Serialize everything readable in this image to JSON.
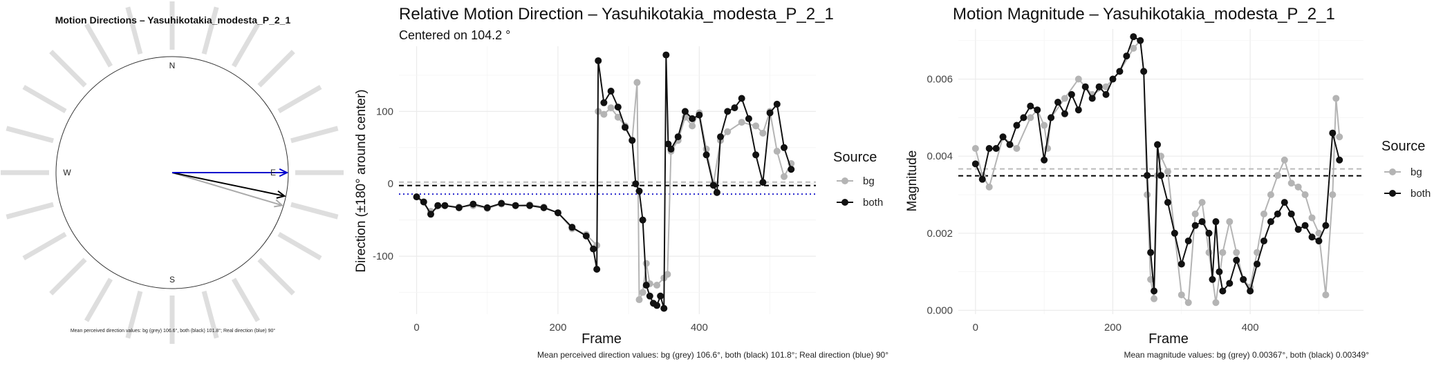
{
  "chart_data": [
    {
      "type": "polar",
      "title": "Motion Directions – Yasuhikotakia_modesta_P_2_1",
      "compass": [
        "N",
        "E",
        "S",
        "W"
      ],
      "rays_deg_ccw_from_east": [
        0,
        15,
        30,
        45,
        60,
        75,
        90,
        105,
        120,
        135,
        150,
        165,
        180,
        195,
        210,
        225,
        240,
        255,
        270,
        285,
        300,
        315,
        330,
        345
      ],
      "arrows": [
        {
          "name": "bg",
          "angle_deg_cw_from_east": 16.6,
          "color": "#aaaaaa"
        },
        {
          "name": "both",
          "angle_deg_cw_from_east": 11.8,
          "color": "#000000"
        },
        {
          "name": "Real",
          "angle_deg_cw_from_east": 0,
          "color": "#0000cc"
        }
      ],
      "caption": "Mean perceived direction values: bg (grey) 106.6°, both (black) 101.8°; Real direction (blue) 90°"
    },
    {
      "type": "line",
      "title": "Relative Motion Direction – Yasuhikotakia_modesta_P_2_1",
      "subtitle": "Centered on  104.2 °",
      "xlabel": "Frame",
      "ylabel": "Direction (±180° around center)",
      "xlim": [
        -25,
        565
      ],
      "ylim": [
        -180,
        190
      ],
      "xticks": [
        0,
        200,
        400
      ],
      "yticks": [
        -100,
        0,
        100
      ],
      "legend": {
        "title": "Source",
        "entries": [
          "bg",
          "both"
        ],
        "placement": "right"
      },
      "hlines": [
        {
          "y": 2.4,
          "color": "#bbbbbb",
          "style": "dashed"
        },
        {
          "y": -2.4,
          "color": "#000000",
          "style": "dashed"
        },
        {
          "y": -14.2,
          "color": "#2222cc",
          "style": "dotted"
        }
      ],
      "series": [
        {
          "name": "bg",
          "color": "#b4b4b4",
          "x": [
            0,
            20,
            40,
            60,
            80,
            100,
            120,
            140,
            160,
            180,
            200,
            220,
            240,
            255,
            257,
            265,
            275,
            285,
            295,
            305,
            312,
            315,
            320,
            325,
            330,
            340,
            350,
            355,
            360,
            370,
            380,
            390,
            400,
            410,
            420,
            430,
            440,
            460,
            480,
            490,
            500,
            510,
            520,
            530
          ],
          "y": [
            -18,
            -38,
            -30,
            -32,
            -30,
            -34,
            -28,
            -30,
            -29,
            -32,
            -40,
            -62,
            -70,
            -85,
            100,
            96,
            105,
            92,
            80,
            60,
            140,
            -160,
            -150,
            -110,
            -138,
            -140,
            -130,
            -125,
            45,
            60,
            92,
            80,
            98,
            48,
            0,
            60,
            72,
            85,
            80,
            70,
            100,
            45,
            10,
            28
          ]
        },
        {
          "name": "both",
          "color": "#111111",
          "x": [
            0,
            10,
            20,
            30,
            40,
            60,
            80,
            100,
            120,
            140,
            160,
            180,
            200,
            220,
            240,
            250,
            255,
            257,
            265,
            275,
            285,
            295,
            305,
            310,
            315,
            320,
            325,
            330,
            335,
            340,
            345,
            350,
            353,
            356,
            360,
            370,
            380,
            390,
            400,
            410,
            420,
            425,
            430,
            440,
            450,
            460,
            470,
            480,
            490,
            500,
            510,
            520,
            530
          ],
          "y": [
            -18,
            -25,
            -42,
            -30,
            -30,
            -33,
            -28,
            -33,
            -27,
            -30,
            -30,
            -33,
            -40,
            -60,
            -72,
            -90,
            -118,
            170,
            112,
            128,
            106,
            78,
            60,
            0,
            -10,
            -50,
            -140,
            -155,
            -165,
            -168,
            -155,
            -172,
            178,
            55,
            48,
            65,
            100,
            90,
            95,
            40,
            -2,
            -12,
            65,
            100,
            105,
            118,
            90,
            40,
            2,
            98,
            110,
            50,
            20
          ]
        }
      ],
      "caption": "Mean perceived direction values: bg (grey) 106.6°, both (black) 101.8°; Real direction (blue) 90°"
    },
    {
      "type": "line",
      "title": "Motion Magnitude – Yasuhikotakia_modesta_P_2_1",
      "xlabel": "Frame",
      "ylabel": "Magnitude",
      "xlim": [
        -25,
        565
      ],
      "ylim": [
        -0.0001,
        0.0073
      ],
      "xticks": [
        0,
        200,
        400
      ],
      "yticks": [
        0.0,
        0.002,
        0.004,
        0.006
      ],
      "ytick_labels": [
        "0.000",
        "0.002",
        "0.004",
        "0.006"
      ],
      "legend": {
        "title": "Source",
        "entries": [
          "bg",
          "both"
        ],
        "placement": "right"
      },
      "hlines": [
        {
          "y": 0.00367,
          "color": "#bbbbbb",
          "style": "dashed"
        },
        {
          "y": 0.00349,
          "color": "#000000",
          "style": "dashed"
        }
      ],
      "series": [
        {
          "name": "bg",
          "color": "#b4b4b4",
          "x": [
            0,
            10,
            20,
            40,
            60,
            80,
            90,
            100,
            105,
            110,
            130,
            150,
            170,
            190,
            210,
            230,
            240,
            245,
            250,
            255,
            260,
            265,
            270,
            280,
            290,
            300,
            310,
            320,
            330,
            340,
            350,
            360,
            370,
            380,
            390,
            400,
            410,
            420,
            430,
            440,
            450,
            460,
            470,
            480,
            490,
            500,
            510,
            520,
            525,
            530
          ],
          "y": [
            0.0042,
            0.0035,
            0.0032,
            0.0045,
            0.0042,
            0.005,
            0.0052,
            0.0048,
            0.0042,
            0.005,
            0.0055,
            0.006,
            0.0056,
            0.0058,
            0.0062,
            0.0068,
            0.007,
            0.0062,
            0.003,
            0.0008,
            0.0003,
            0.0035,
            0.004,
            0.0036,
            0.002,
            0.0004,
            0.0002,
            0.0025,
            0.0028,
            0.0015,
            0.0002,
            0.0015,
            0.0023,
            0.0015,
            0.0008,
            0.0006,
            0.0015,
            0.0025,
            0.003,
            0.0035,
            0.0039,
            0.0033,
            0.0032,
            0.003,
            0.0024,
            0.002,
            0.0004,
            0.003,
            0.0055,
            0.0045
          ]
        },
        {
          "name": "both",
          "color": "#111111",
          "x": [
            0,
            10,
            20,
            30,
            40,
            50,
            60,
            70,
            80,
            90,
            100,
            110,
            120,
            130,
            140,
            150,
            160,
            170,
            180,
            190,
            200,
            210,
            220,
            230,
            240,
            245,
            250,
            255,
            260,
            265,
            270,
            280,
            290,
            300,
            310,
            320,
            330,
            340,
            345,
            350,
            355,
            360,
            370,
            380,
            390,
            400,
            410,
            420,
            430,
            440,
            450,
            460,
            470,
            480,
            490,
            500,
            510,
            520,
            530
          ],
          "y": [
            0.0038,
            0.0034,
            0.0042,
            0.0042,
            0.0045,
            0.0043,
            0.0048,
            0.005,
            0.0053,
            0.0052,
            0.0039,
            0.005,
            0.0054,
            0.0051,
            0.0056,
            0.0052,
            0.0058,
            0.0055,
            0.0058,
            0.0056,
            0.006,
            0.0062,
            0.0066,
            0.0071,
            0.007,
            0.0062,
            0.0035,
            0.0015,
            0.0005,
            0.0043,
            0.0035,
            0.0028,
            0.002,
            0.0012,
            0.0018,
            0.0022,
            0.0023,
            0.002,
            0.0008,
            0.0023,
            0.001,
            0.0005,
            0.0007,
            0.0013,
            0.0008,
            0.0005,
            0.0012,
            0.0018,
            0.0023,
            0.0025,
            0.0028,
            0.0025,
            0.0021,
            0.0022,
            0.0019,
            0.0018,
            0.0022,
            0.0046,
            0.0039
          ]
        }
      ],
      "caption": "Mean magnitude values: bg (grey) 0.00367°, both (black) 0.00349°"
    }
  ]
}
